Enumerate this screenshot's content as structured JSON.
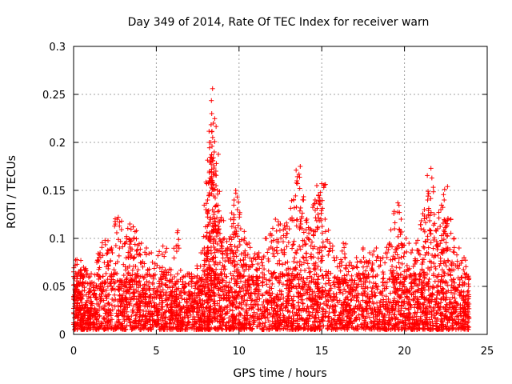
{
  "chart_data": {
    "type": "scatter",
    "title": "Day 349 of 2014, Rate Of TEC Index for receiver warn",
    "xlabel": "GPS time / hours",
    "ylabel": "ROTI / TECUs",
    "xlim": [
      0,
      25
    ],
    "ylim": [
      0,
      0.3
    ],
    "xticks": [
      0,
      5,
      10,
      15,
      20,
      25
    ],
    "xtick_labels": [
      "0",
      "5",
      "10",
      "15",
      "20",
      "25"
    ],
    "yticks": [
      0,
      0.05,
      0.1,
      0.15,
      0.2,
      0.25,
      0.3
    ],
    "ytick_labels": [
      "0",
      "0.05",
      "0.1",
      "0.15",
      "0.2",
      "0.25",
      "0.3"
    ],
    "grid": true,
    "marker": "+",
    "color": "#ff0000",
    "series": [
      {
        "name": "ROTI",
        "points": [
          [
            0.1,
            0.072
          ],
          [
            0.2,
            0.078
          ],
          [
            0.3,
            0.065
          ],
          [
            0.4,
            0.058
          ],
          [
            0.6,
            0.07
          ],
          [
            0.8,
            0.062
          ],
          [
            1.2,
            0.05
          ],
          [
            1.6,
            0.085
          ],
          [
            1.9,
            0.098
          ],
          [
            2.3,
            0.09
          ],
          [
            2.7,
            0.122
          ],
          [
            2.9,
            0.118
          ],
          [
            3.2,
            0.1
          ],
          [
            3.4,
            0.115
          ],
          [
            3.6,
            0.112
          ],
          [
            3.8,
            0.108
          ],
          [
            4.1,
            0.095
          ],
          [
            4.4,
            0.09
          ],
          [
            4.7,
            0.085
          ],
          [
            5.1,
            0.082
          ],
          [
            5.4,
            0.092
          ],
          [
            5.8,
            0.068
          ],
          [
            6.1,
            0.06
          ],
          [
            6.3,
            0.108
          ],
          [
            6.6,
            0.055
          ],
          [
            7.0,
            0.06
          ],
          [
            7.3,
            0.06
          ],
          [
            7.7,
            0.085
          ],
          [
            7.9,
            0.09
          ],
          [
            8.0,
            0.13
          ],
          [
            8.1,
            0.14
          ],
          [
            8.2,
            0.16
          ],
          [
            8.25,
            0.18
          ],
          [
            8.3,
            0.2
          ],
          [
            8.35,
            0.23
          ],
          [
            8.4,
            0.256
          ],
          [
            8.45,
            0.22
          ],
          [
            8.5,
            0.19
          ],
          [
            8.6,
            0.17
          ],
          [
            8.7,
            0.15
          ],
          [
            8.9,
            0.12
          ],
          [
            9.1,
            0.1
          ],
          [
            9.3,
            0.09
          ],
          [
            9.5,
            0.12
          ],
          [
            9.7,
            0.14
          ],
          [
            9.8,
            0.15
          ],
          [
            9.9,
            0.13
          ],
          [
            10.1,
            0.11
          ],
          [
            10.3,
            0.085
          ],
          [
            10.6,
            0.095
          ],
          [
            10.9,
            0.08
          ],
          [
            11.2,
            0.085
          ],
          [
            11.6,
            0.1
          ],
          [
            11.9,
            0.105
          ],
          [
            12.2,
            0.12
          ],
          [
            12.5,
            0.115
          ],
          [
            12.8,
            0.11
          ],
          [
            13.1,
            0.12
          ],
          [
            13.3,
            0.14
          ],
          [
            13.5,
            0.16
          ],
          [
            13.7,
            0.175
          ],
          [
            13.9,
            0.14
          ],
          [
            14.1,
            0.12
          ],
          [
            14.3,
            0.11
          ],
          [
            14.5,
            0.135
          ],
          [
            14.7,
            0.155
          ],
          [
            14.8,
            0.145
          ],
          [
            15.0,
            0.157
          ],
          [
            15.2,
            0.12
          ],
          [
            15.5,
            0.095
          ],
          [
            15.9,
            0.08
          ],
          [
            16.3,
            0.095
          ],
          [
            16.7,
            0.075
          ],
          [
            17.1,
            0.08
          ],
          [
            17.5,
            0.09
          ],
          [
            17.9,
            0.085
          ],
          [
            18.3,
            0.09
          ],
          [
            18.7,
            0.08
          ],
          [
            19.1,
            0.095
          ],
          [
            19.4,
            0.11
          ],
          [
            19.6,
            0.137
          ],
          [
            19.8,
            0.12
          ],
          [
            20.1,
            0.1
          ],
          [
            20.4,
            0.085
          ],
          [
            20.7,
            0.095
          ],
          [
            21.0,
            0.11
          ],
          [
            21.2,
            0.13
          ],
          [
            21.4,
            0.14
          ],
          [
            21.6,
            0.173
          ],
          [
            21.8,
            0.125
          ],
          [
            22.0,
            0.11
          ],
          [
            22.2,
            0.13
          ],
          [
            22.4,
            0.14
          ],
          [
            22.6,
            0.154
          ],
          [
            22.8,
            0.12
          ],
          [
            23.0,
            0.1
          ],
          [
            23.3,
            0.09
          ],
          [
            23.6,
            0.08
          ],
          [
            23.8,
            0.06
          ]
        ],
        "baseline_band": [
          0.005,
          0.05
        ],
        "sampling_hours": [
          0,
          23.9
        ]
      }
    ]
  }
}
